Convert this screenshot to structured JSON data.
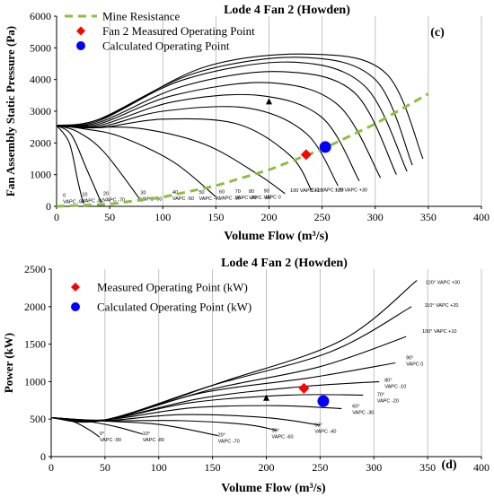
{
  "chart_data": [
    {
      "type": "line",
      "title": "Lode 4 Fan 2 (Howden)",
      "panel_label": "(c)",
      "xlabel": "Volume Flow (m³/s)",
      "ylabel": "Fan Assembly Static Pressure (Pa)",
      "xlim": [
        0,
        400
      ],
      "ylim": [
        0,
        6000
      ],
      "xticks": [
        0,
        50,
        100,
        150,
        200,
        250,
        300,
        350,
        400
      ],
      "yticks": [
        0,
        1000,
        2000,
        3000,
        4000,
        5000,
        6000
      ],
      "grid": "vertical",
      "legend_position": "top-left",
      "legend": [
        {
          "label": "Mine Resistance",
          "marker": "dashed-line",
          "color": "#8cbf3f"
        },
        {
          "label": "Fan 2 Measured Operating Point",
          "marker": "diamond",
          "color": "#ff0000"
        },
        {
          "label": "Calculated Operating Point",
          "marker": "circle",
          "color": "#0000ff"
        }
      ],
      "mine_resistance": {
        "x": [
          0,
          50,
          100,
          150,
          200,
          250,
          300,
          350
        ],
        "y": [
          0,
          70,
          290,
          650,
          1150,
          1800,
          2600,
          3550
        ]
      },
      "measured_point": {
        "x": 235,
        "y": 1630
      },
      "calculated_point": {
        "x": 253,
        "y": 1870
      },
      "arrow_marker": {
        "x": 200,
        "y": 3300
      },
      "series": [
        {
          "label": "0 VAPC -90",
          "label_lines": [
            "0",
            "VAPC -90"
          ],
          "label_pos": [
            6,
            300
          ],
          "x": [
            0,
            12,
            20,
            25
          ],
          "y": [
            2550,
            2000,
            800,
            100
          ]
        },
        {
          "label": "10 VAPC -80",
          "label_lines": [
            "10",
            "VAPC -80"
          ],
          "label_pos": [
            24,
            330
          ],
          "x": [
            0,
            14,
            28,
            42
          ],
          "y": [
            2550,
            2250,
            1200,
            120
          ]
        },
        {
          "label": "20 VAPC -70",
          "label_lines": [
            "20",
            "VAPC -70"
          ],
          "label_pos": [
            44,
            360
          ],
          "x": [
            0,
            20,
            45,
            80
          ],
          "y": [
            2550,
            2350,
            1700,
            150
          ]
        },
        {
          "label": "30 VAPC -60",
          "label_lines": [
            "30",
            "VAPC -60"
          ],
          "label_pos": [
            79,
            380
          ],
          "x": [
            0,
            25,
            60,
            110,
            150
          ],
          "y": [
            2550,
            2450,
            2200,
            1400,
            300
          ]
        },
        {
          "label": "40 VAPC -50",
          "label_lines": [
            "40",
            "VAPC -50"
          ],
          "label_pos": [
            109,
            390
          ],
          "x": [
            0,
            30,
            80,
            140,
            190,
            215
          ],
          "y": [
            2550,
            2500,
            2450,
            1950,
            1000,
            400
          ]
        },
        {
          "label": "50 VAPC -40",
          "label_lines": [
            "50",
            "VAPC -40"
          ],
          "label_pos": [
            134,
            400
          ],
          "x": [
            0,
            40,
            100,
            170,
            220,
            240
          ],
          "y": [
            2550,
            2480,
            2750,
            2600,
            1600,
            500
          ]
        },
        {
          "label": "60 VAPC -30",
          "label_lines": [
            "60",
            "VAPC -30"
          ],
          "label_pos": [
            153,
            410
          ],
          "x": [
            0,
            40,
            100,
            180,
            235,
            265
          ],
          "y": [
            2550,
            2500,
            3000,
            3100,
            2300,
            650
          ]
        },
        {
          "label": "70 VAPC -20",
          "label_lines": [
            "70",
            "VAPC -20"
          ],
          "label_pos": [
            168,
            420
          ],
          "x": [
            0,
            40,
            110,
            190,
            250,
            285
          ],
          "y": [
            2550,
            2550,
            3300,
            3500,
            2800,
            800
          ]
        },
        {
          "label": "80 VAPC -10",
          "label_lines": [
            "80",
            "VAPC -10"
          ],
          "label_pos": [
            181,
            430
          ],
          "x": [
            0,
            40,
            110,
            200,
            265,
            305
          ],
          "y": [
            2550,
            2600,
            3500,
            3900,
            3200,
            900
          ]
        },
        {
          "label": "90 VAPC 0",
          "label_lines": [
            "90",
            "VAPC 0"
          ],
          "label_pos": [
            195,
            440
          ],
          "x": [
            0,
            40,
            120,
            210,
            280,
            320
          ],
          "y": [
            2550,
            2650,
            3800,
            4250,
            3600,
            1000
          ]
        },
        {
          "label": "100 VAPC +10",
          "label_lines": [
            "100 VAPC +10"
          ],
          "label_pos": [
            220,
            450
          ],
          "x": [
            0,
            40,
            120,
            220,
            290,
            330
          ],
          "y": [
            2550,
            2700,
            4000,
            4550,
            3800,
            1100
          ]
        },
        {
          "label": "110 VAPC +20",
          "label_lines": [
            "110 VAPC +20"
          ],
          "label_pos": [
            240,
            460
          ],
          "x": [
            0,
            40,
            130,
            230,
            300,
            335
          ],
          "y": [
            2550,
            2750,
            4200,
            4700,
            4000,
            1300
          ]
        },
        {
          "label": "120 VAPC +30",
          "label_lines": [
            "120 VAPC +30"
          ],
          "label_pos": [
            262,
            470
          ],
          "x": [
            0,
            45,
            140,
            240,
            310,
            345
          ],
          "y": [
            2550,
            2800,
            4400,
            4800,
            4200,
            1500
          ]
        }
      ]
    },
    {
      "type": "line",
      "title": "Lode 4 Fan 2 (Howden)",
      "panel_label": "(d)",
      "xlabel": "Volume Flow (m³/s)",
      "ylabel": "Power (kW)",
      "xlim": [
        0,
        400
      ],
      "ylim": [
        0,
        2500
      ],
      "xticks": [
        0,
        50,
        100,
        150,
        200,
        250,
        300,
        350,
        400
      ],
      "yticks": [
        0,
        500,
        1000,
        1500,
        2000,
        2500
      ],
      "grid": "vertical",
      "legend_position": "top-left",
      "legend": [
        {
          "label": "Measured Operating Point (kW)",
          "marker": "diamond",
          "color": "#ff0000"
        },
        {
          "label": "Calculated Operating Point (kW)",
          "marker": "circle",
          "color": "#0000ff"
        }
      ],
      "measured_point": {
        "x": 235,
        "y": 910
      },
      "calculated_point": {
        "x": 253,
        "y": 740
      },
      "arrow_marker": {
        "x": 200,
        "y": 780
      },
      "series": [
        {
          "label": "0° VAPC -90",
          "label_lines": [
            "0°",
            "VAPC -90"
          ],
          "label_pos": [
            45,
            290
          ],
          "x": [
            0,
            20,
            35,
            45
          ],
          "y": [
            520,
            470,
            360,
            260
          ]
        },
        {
          "label": "10° VAPC -80",
          "label_lines": [
            "10°",
            "VAPC -80"
          ],
          "label_pos": [
            85,
            290
          ],
          "x": [
            0,
            30,
            60,
            85
          ],
          "y": [
            520,
            480,
            400,
            300
          ]
        },
        {
          "label": "20° VAPC -70",
          "label_lines": [
            "20°",
            "VAPC -70"
          ],
          "label_pos": [
            155,
            270
          ],
          "x": [
            0,
            40,
            100,
            155
          ],
          "y": [
            520,
            480,
            430,
            280
          ]
        },
        {
          "label": "30° VAPC -60",
          "label_lines": [
            "30°",
            "VAPC -60"
          ],
          "label_pos": [
            205,
            330
          ],
          "x": [
            0,
            50,
            120,
            180,
            210
          ],
          "y": [
            520,
            480,
            480,
            430,
            350
          ]
        },
        {
          "label": "50° VAPC -40",
          "label_lines": [
            "50°",
            "VAPC -40"
          ],
          "label_pos": [
            245,
            400
          ],
          "x": [
            0,
            50,
            120,
            200,
            250
          ],
          "y": [
            520,
            480,
            560,
            520,
            420
          ]
        },
        {
          "label": "60° VAPC -30",
          "label_lines": [
            "60°",
            "VAPC -30"
          ],
          "label_pos": [
            280,
            650
          ],
          "x": [
            0,
            50,
            130,
            210,
            270
          ],
          "y": [
            520,
            490,
            650,
            680,
            640
          ]
        },
        {
          "label": "70° VAPC -20",
          "label_lines": [
            "70°",
            "VAPC -20"
          ],
          "label_pos": [
            303,
            810
          ],
          "x": [
            0,
            50,
            130,
            220,
            290
          ],
          "y": [
            520,
            490,
            720,
            820,
            820
          ]
        },
        {
          "label": "80° VAPC -10",
          "label_lines": [
            "80°",
            "VAPC -10"
          ],
          "label_pos": [
            310,
            1000
          ],
          "x": [
            0,
            50,
            140,
            230,
            305
          ],
          "y": [
            520,
            490,
            780,
            930,
            1000
          ]
        },
        {
          "label": "90° VAPC 0",
          "label_lines": [
            "90°",
            "VAPC 0"
          ],
          "label_pos": [
            330,
            1300
          ],
          "x": [
            0,
            50,
            140,
            240,
            320
          ],
          "y": [
            520,
            490,
            850,
            1050,
            1250
          ]
        },
        {
          "label": "100° VAPC +10",
          "label_lines": [
            "100° VAPC +10"
          ],
          "label_pos": [
            345,
            1650
          ],
          "x": [
            0,
            50,
            150,
            250,
            330
          ],
          "y": [
            520,
            490,
            900,
            1200,
            1600
          ]
        },
        {
          "label": "110° VAPC +20",
          "label_lines": [
            "110° VAPC +20"
          ],
          "label_pos": [
            347,
            2000
          ],
          "x": [
            0,
            50,
            150,
            260,
            335
          ],
          "y": [
            520,
            490,
            950,
            1400,
            2000
          ]
        },
        {
          "label": "120° VAPC +30",
          "label_lines": [
            "120° VAPC +30"
          ],
          "label_pos": [
            348,
            2300
          ],
          "x": [
            0,
            50,
            160,
            270,
            340
          ],
          "y": [
            520,
            490,
            1000,
            1550,
            2350
          ]
        }
      ]
    }
  ]
}
